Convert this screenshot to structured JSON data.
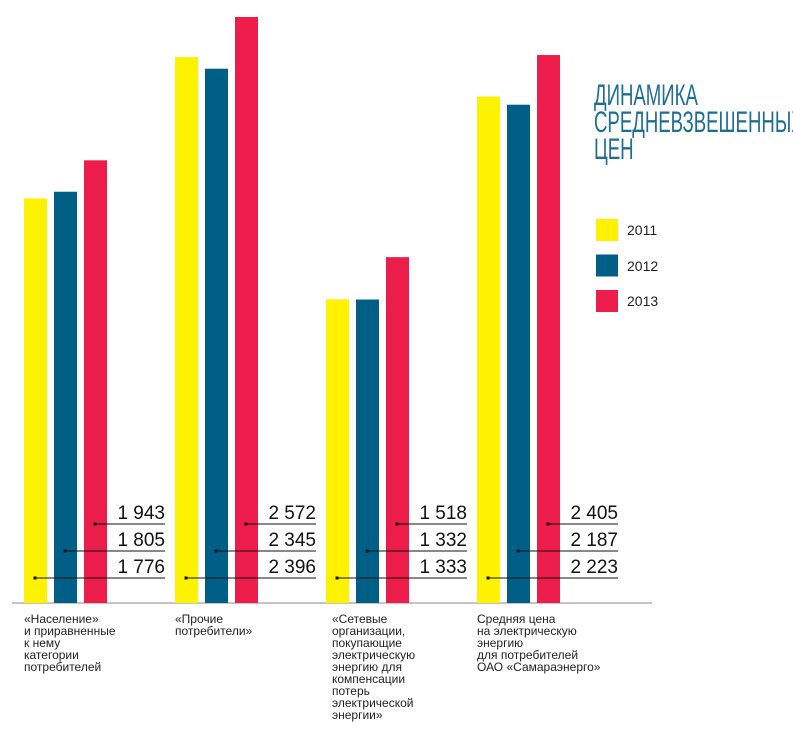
{
  "chart_data": {
    "type": "bar",
    "title": "ДИНАМИКА\nСРЕДНЕВЗВЕШЕННЫХ\nЦЕН",
    "categories": [
      "«Население»\nи приравненные\nк нему\nкатегории\nпотребителей",
      "«Прочие\nпотребители»",
      "«Сетевые\nорганизации,\nпокупающие\nэлектрическую\nэнергию для\nкомпенсации\nпотерь\nэлектрической\nэнергии»",
      "Средняя цена\nна электрическую\nэнергию\nдля потребителей\nОАО «Самараэнерго»"
    ],
    "series": [
      {
        "name": "2011",
        "color": "#fff200",
        "values": [
          1776,
          2396,
          1333,
          2223
        ],
        "value_labels": [
          "1 776",
          "2 396",
          "1 333",
          "2 223"
        ]
      },
      {
        "name": "2012",
        "color": "#005f87",
        "values": [
          1805,
          2345,
          1332,
          2187
        ],
        "value_labels": [
          "1 805",
          "2 345",
          "1 332",
          "2 187"
        ]
      },
      {
        "name": "2013",
        "color": "#ec1c4b",
        "values": [
          1943,
          2572,
          1518,
          2405
        ],
        "value_labels": [
          "1 943",
          "2 572",
          "1 518",
          "2 405"
        ]
      }
    ],
    "legend": "right"
  }
}
